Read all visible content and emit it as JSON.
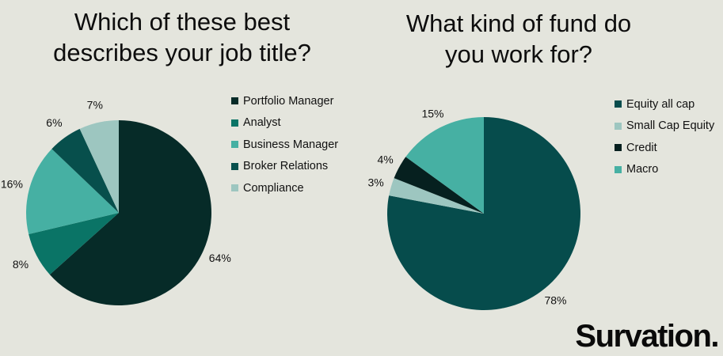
{
  "brand": {
    "name": "Survation."
  },
  "chart_data": [
    {
      "type": "pie",
      "title": "Which of these best describes your job title?",
      "title_lines": [
        "Which of these best",
        "describes your job title?"
      ],
      "legend_position": "right",
      "slices": [
        {
          "label": "Portfolio Manager",
          "value": 64,
          "display": "64%",
          "color": "#062b28"
        },
        {
          "label": "Analyst",
          "value": 8,
          "display": "8%",
          "color": "#0a7466"
        },
        {
          "label": "Business Manager",
          "value": 16,
          "display": "16%",
          "color": "#46b0a3"
        },
        {
          "label": "Broker Relations",
          "value": 6,
          "display": "6%",
          "color": "#074f4c"
        },
        {
          "label": "Compliance",
          "value": 7,
          "display": "7%",
          "color": "#9dc6c0"
        }
      ]
    },
    {
      "type": "pie",
      "title": "What kind of fund do you work for?",
      "title_lines": [
        "What kind of fund do",
        "you work for?"
      ],
      "legend_position": "right",
      "slices": [
        {
          "label": "Equity all cap",
          "value": 78,
          "display": "78%",
          "color": "#064c4c"
        },
        {
          "label": "Small Cap Equity",
          "value": 3,
          "display": "3%",
          "color": "#9dc6c0"
        },
        {
          "label": "Credit",
          "value": 4,
          "display": "4%",
          "color": "#06201f"
        },
        {
          "label": "Macro",
          "value": 15,
          "display": "15%",
          "color": "#46b0a3"
        }
      ]
    }
  ]
}
